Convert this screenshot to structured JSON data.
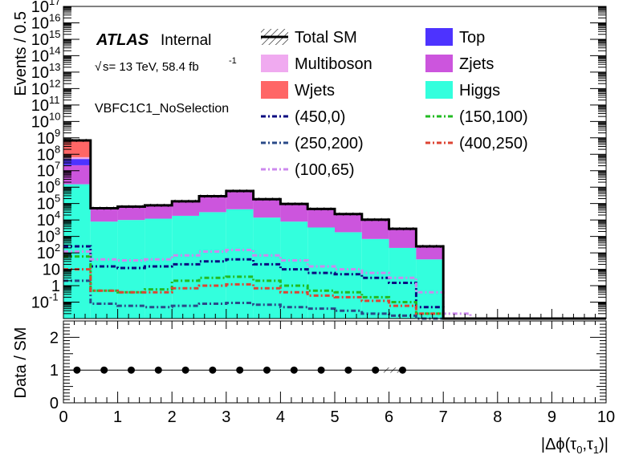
{
  "chart_data": {
    "type": "bar",
    "stacked_histogram": true,
    "log_scale_y": true,
    "atlas_label": "ATLAS",
    "atlas_suffix": "Internal",
    "energy_label": "s= 13 TeV, 58.4 fb",
    "energy_exponent": "-1",
    "region_label": "VBFC1C1_NoSelection",
    "ylabel_top": "Events / 0.5",
    "ylabel_bottom": "Data / SM",
    "xlabel": "|Δϕ(τ₀,τ₁)|",
    "xlim": [
      0,
      10
    ],
    "ylim_top": [
      0.01,
      1e+17
    ],
    "ylim_ratio": [
      0,
      2.5
    ],
    "bin_edges": [
      0,
      0.5,
      1.0,
      1.5,
      2.0,
      2.5,
      3.0,
      3.5,
      4.0,
      4.5,
      5.0,
      5.5,
      6.0,
      6.5,
      7.0,
      7.5,
      8.0,
      8.5,
      9.0,
      9.5,
      10.0
    ],
    "stack": [
      {
        "name": "Higgs",
        "color": "#33ffdd",
        "values": [
          1500000.0,
          8000,
          10000,
          12000,
          18000,
          30000,
          45000,
          14000,
          8000,
          3500,
          1800,
          700,
          200,
          40,
          0,
          0,
          0,
          0,
          0,
          0
        ]
      },
      {
        "name": "Zjets",
        "color": "#cc55dd",
        "values": [
          20000000.0,
          40000,
          50000,
          60000,
          110000,
          230000,
          500000,
          160000,
          80000,
          40000,
          20000,
          9000,
          2500,
          200,
          0,
          0,
          0,
          0,
          0,
          0
        ]
      },
      {
        "name": "Top",
        "color": "#4d33ff",
        "values": [
          30000000.0,
          2000,
          2500,
          3000,
          5000,
          9000,
          18000,
          6000,
          3000,
          1500,
          800,
          300,
          80,
          5,
          0,
          0,
          0,
          0,
          0,
          0
        ]
      },
      {
        "name": "Multiboson",
        "color": "#f0aaf0",
        "values": [
          15000000.0,
          500,
          600,
          700,
          1200,
          2500,
          4500,
          1500,
          800,
          400,
          200,
          80,
          20,
          2,
          0,
          0,
          0,
          0,
          0,
          0
        ]
      },
      {
        "name": "Wjets",
        "color": "#ff6666",
        "values": [
          650000000.0,
          1500,
          2000,
          2500,
          4000,
          8000,
          15000,
          5000,
          2500,
          1200,
          600,
          250,
          60,
          3,
          0,
          0,
          0,
          0,
          0,
          0
        ]
      }
    ],
    "total_sm": [
      700000000.0,
      52000,
      65000,
      78000,
      138000,
      280000,
      580000,
      185000,
      95000,
      47000,
      23000,
      10500,
      2900,
      250,
      0,
      0,
      0,
      0,
      0,
      0
    ],
    "signals": [
      {
        "name": "(450,0)",
        "color": "#0a0a80",
        "dash": "6,3,2,3",
        "values": [
          250,
          15,
          12,
          15,
          20,
          30,
          40,
          20,
          10,
          6,
          5,
          3,
          1.5,
          0.05,
          0.01,
          0.01,
          0.01,
          0.01,
          0.01,
          0.01
        ]
      },
      {
        "name": "(150,100)",
        "color": "#22bb22",
        "dash": "6,3,2,3",
        "values": [
          60,
          0.5,
          0.4,
          0.6,
          2,
          3,
          3.5,
          2,
          1,
          0.5,
          0.4,
          0.2,
          0.1,
          0.02,
          0.01,
          0.01,
          0.01,
          0.01,
          0.01,
          0.01
        ]
      },
      {
        "name": "(250,200)",
        "color": "#2a4a88",
        "dash": "6,3,2,3",
        "values": [
          2,
          0.08,
          0.06,
          0.05,
          0.06,
          0.08,
          0.09,
          0.07,
          0.05,
          0.04,
          0.03,
          0.02,
          0.015,
          0.01,
          0.01,
          0.01,
          0.01,
          0.01,
          0.01,
          0.01
        ]
      },
      {
        "name": "(400,250)",
        "color": "#dd4433",
        "dash": "6,3,2,3",
        "values": [
          10,
          0.5,
          0.4,
          0.4,
          0.7,
          1,
          1.2,
          0.7,
          0.4,
          0.25,
          0.2,
          0.12,
          0.06,
          0.02,
          0.01,
          0.01,
          0.01,
          0.01,
          0.01,
          0.01
        ]
      },
      {
        "name": "(100,65)",
        "color": "#cc88ee",
        "dash": "6,3,2,3",
        "values": [
          120,
          40,
          35,
          40,
          70,
          120,
          150,
          70,
          35,
          15,
          10,
          6,
          3,
          0.4,
          0.02,
          0.01,
          0.01,
          0.01,
          0.01,
          0.01
        ]
      }
    ],
    "ratio_points": {
      "x": [
        0.25,
        0.75,
        1.25,
        1.75,
        2.25,
        2.75,
        3.25,
        3.75,
        4.25,
        4.75,
        5.25,
        5.75,
        6.25
      ],
      "y": [
        1,
        1,
        1,
        1,
        1,
        1,
        1,
        1,
        1,
        1,
        1,
        1,
        1
      ]
    },
    "legend": {
      "placement": "top-right",
      "total_sm_label": "Total SM"
    },
    "x_ticks": [
      "0",
      "1",
      "2",
      "3",
      "4",
      "5",
      "6",
      "7",
      "8",
      "9",
      "10"
    ],
    "ratio_ticks": [
      "0",
      "1",
      "2"
    ]
  }
}
